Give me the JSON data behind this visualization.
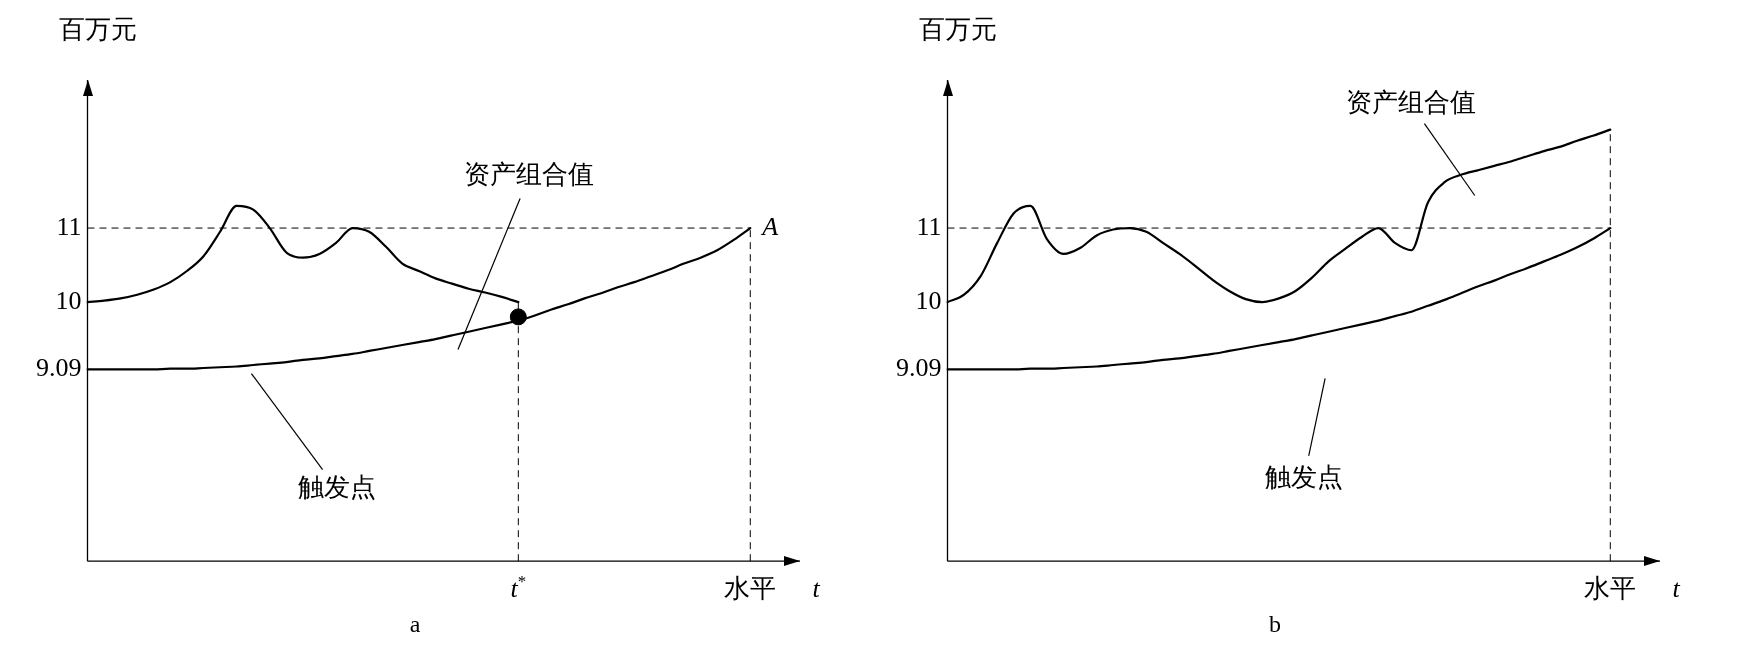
{
  "chart_data": [
    {
      "type": "line",
      "title": "a",
      "xlabel": "t",
      "ylabel": "百万元",
      "ylim": [
        6.5,
        13
      ],
      "yticks": [
        9.09,
        10,
        11
      ],
      "categories": [
        null,
        null,
        null,
        null,
        null,
        null,
        null,
        null,
        null,
        null,
        null,
        null,
        null,
        null,
        null,
        null,
        null,
        null,
        null,
        null,
        null,
        null,
        null,
        null,
        null,
        null,
        "t$^{*}$",
        null,
        null,
        null,
        null,
        null,
        null,
        null,
        null,
        null,
        null,
        null,
        null,
        null,
        "水平",
        null,
        null,
        null
      ],
      "series": [
        {
          "color": "#000000",
          "values": [
            10.0,
            10.02,
            10.05,
            10.1,
            10.17,
            10.27,
            10.42,
            10.62,
            10.95,
            11.3,
            11.25,
            11.0,
            10.67,
            10.6,
            10.65,
            10.8,
            11.0,
            10.95,
            10.75,
            10.52,
            10.42,
            10.32,
            10.25,
            10.18,
            10.13,
            10.07,
            10.0,
            null,
            null,
            null,
            null,
            null,
            null,
            null,
            null,
            null,
            null,
            null,
            null,
            null,
            null,
            null,
            null,
            null
          ]
        },
        {
          "color": "#000000",
          "values": [
            9.09,
            9.09,
            9.09,
            9.09,
            9.09,
            9.1,
            9.1,
            9.11,
            9.12,
            9.13,
            9.15,
            9.17,
            9.19,
            9.22,
            9.24,
            9.27,
            9.3,
            9.34,
            9.38,
            9.42,
            9.46,
            9.5,
            9.55,
            9.6,
            9.65,
            9.7,
            9.75,
            9.82,
            9.9,
            9.97,
            10.05,
            10.12,
            10.2,
            10.27,
            10.35,
            10.43,
            10.52,
            10.6,
            10.7,
            10.84,
            11.0,
            null,
            null,
            null
          ]
        },
        {
          "type": "scatter",
          "color": "#000000",
          "marker": "circle",
          "x": [
            "t$^{*}$"
          ],
          "values": [
            9.8
          ]
        }
      ],
      "ref_lines": [
        {
          "axis": "y",
          "value": 11,
          "line_style": "dashed"
        },
        {
          "axis": "x",
          "value": "t$^{*}$",
          "line_style": "dashed"
        },
        {
          "axis": "x",
          "value": "水平",
          "line_style": "dashed"
        }
      ],
      "annotations": [
        "资产组合值",
        "触发点",
        {
          "text": "A",
          "x": "水平",
          "y": 11
        }
      ],
      "grid": false,
      "legend": false,
      "line_style": "solid"
    },
    {
      "type": "line",
      "title": "b",
      "xlabel": "t",
      "ylabel": "百万元",
      "ylim": [
        6.5,
        13
      ],
      "yticks": [
        9.09,
        10,
        11
      ],
      "categories": [
        null,
        null,
        null,
        null,
        null,
        null,
        null,
        null,
        null,
        null,
        null,
        null,
        null,
        null,
        null,
        null,
        null,
        null,
        null,
        null,
        null,
        null,
        null,
        null,
        null,
        null,
        null,
        null,
        null,
        null,
        null,
        null,
        null,
        null,
        null,
        null,
        null,
        null,
        null,
        null,
        "水平",
        null,
        null,
        null
      ],
      "series": [
        {
          "color": "#000000",
          "values": [
            10.0,
            10.1,
            10.35,
            10.8,
            11.2,
            11.3,
            10.85,
            10.65,
            10.73,
            10.9,
            10.98,
            11.0,
            10.95,
            10.8,
            10.65,
            10.48,
            10.3,
            10.15,
            10.04,
            10.0,
            10.05,
            10.15,
            10.33,
            10.55,
            10.72,
            10.88,
            11.0,
            10.8,
            10.7,
            11.35,
            11.62,
            11.72,
            11.78,
            11.84,
            11.9,
            11.97,
            12.04,
            12.1,
            12.18,
            12.25,
            12.33,
            null,
            null,
            null
          ]
        },
        {
          "color": "#000000",
          "values": [
            9.09,
            9.09,
            9.09,
            9.09,
            9.09,
            9.1,
            9.1,
            9.11,
            9.12,
            9.13,
            9.15,
            9.17,
            9.19,
            9.22,
            9.24,
            9.27,
            9.3,
            9.34,
            9.38,
            9.42,
            9.46,
            9.5,
            9.55,
            9.6,
            9.65,
            9.7,
            9.75,
            9.81,
            9.87,
            9.95,
            10.03,
            10.12,
            10.21,
            10.29,
            10.38,
            10.46,
            10.55,
            10.64,
            10.74,
            10.86,
            11.0,
            null,
            null,
            null
          ]
        }
      ],
      "ref_lines": [
        {
          "axis": "y",
          "value": 11,
          "line_style": "dashed"
        },
        {
          "axis": "x",
          "value": "水平",
          "line_style": "dashed"
        }
      ],
      "annotations": [
        "资产组合值",
        "触发点"
      ],
      "grid": false,
      "legend": false,
      "line_style": "solid"
    }
  ]
}
